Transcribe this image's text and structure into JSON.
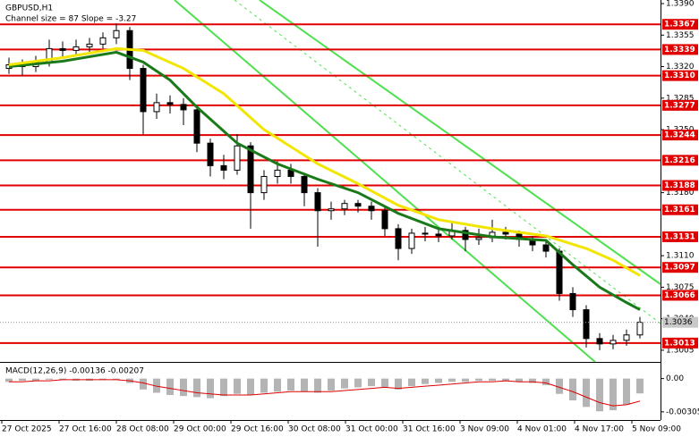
{
  "chart_data": {
    "type": "candlestick",
    "title": "GBPUSD,H1",
    "subtitle": "Channel size = 87 Slope = -3.27",
    "categories": [
      "27 Oct 2025",
      "27 Oct 16:00",
      "28 Oct 08:00",
      "29 Oct 00:00",
      "29 Oct 16:00",
      "30 Oct 08:00",
      "31 Oct 00:00",
      "31 Oct 16:00",
      "3 Nov 09:00",
      "4 Nov 01:00",
      "4 Nov 17:00",
      "5 Nov 09:00"
    ],
    "ylim": [
      1.2992,
      1.3394
    ],
    "yticks": [
      {
        "value": 1.339,
        "label": "1.3390"
      },
      1.3355,
      {
        "value": 1.332,
        "label": "1.3320"
      },
      1.3285,
      {
        "value": 1.325,
        "label": "1.3250"
      },
      {
        "value": 1.318,
        "label": "1.3180"
      },
      {
        "value": 1.311,
        "label": "1.3110"
      },
      1.3075,
      {
        "value": 1.304,
        "label": "1.3040"
      },
      1.3005
    ],
    "bull_color": "#000000",
    "bear_color": "#000000",
    "ohlc": [
      [
        1.3318,
        1.333,
        1.3312,
        1.3322
      ],
      [
        1.3322,
        1.3328,
        1.331,
        1.332
      ],
      [
        1.332,
        1.3332,
        1.3314,
        1.3325
      ],
      [
        1.3325,
        1.335,
        1.332,
        1.334
      ],
      [
        1.334,
        1.3348,
        1.333,
        1.3338
      ],
      [
        1.3338,
        1.335,
        1.3332,
        1.3342
      ],
      [
        1.3342,
        1.3352,
        1.3335,
        1.3345
      ],
      [
        1.3345,
        1.3358,
        1.334,
        1.3352
      ],
      [
        1.3352,
        1.3368,
        1.3345,
        1.336
      ],
      [
        1.336,
        1.3364,
        1.3305,
        1.3318
      ],
      [
        1.3318,
        1.3322,
        1.3245,
        1.327
      ],
      [
        1.327,
        1.329,
        1.3262,
        1.328
      ],
      [
        1.328,
        1.3288,
        1.3268,
        1.3278
      ],
      [
        1.3278,
        1.3285,
        1.3255,
        1.3272
      ],
      [
        1.3272,
        1.3276,
        1.3225,
        1.3235
      ],
      [
        1.3235,
        1.324,
        1.3198,
        1.321
      ],
      [
        1.321,
        1.3222,
        1.3195,
        1.3205
      ],
      [
        1.3205,
        1.3245,
        1.32,
        1.3232
      ],
      [
        1.3232,
        1.3236,
        1.314,
        1.318
      ],
      [
        1.318,
        1.3205,
        1.3172,
        1.3198
      ],
      [
        1.3198,
        1.3215,
        1.319,
        1.3205
      ],
      [
        1.3205,
        1.3212,
        1.319,
        1.3198
      ],
      [
        1.3198,
        1.3202,
        1.3165,
        1.318
      ],
      [
        1.318,
        1.3185,
        1.312,
        1.316
      ],
      [
        1.316,
        1.317,
        1.315,
        1.3162
      ],
      [
        1.3162,
        1.3172,
        1.3155,
        1.3168
      ],
      [
        1.3168,
        1.3172,
        1.3158,
        1.3165
      ],
      [
        1.3165,
        1.317,
        1.315,
        1.316
      ],
      [
        1.316,
        1.3164,
        1.3132,
        1.314
      ],
      [
        1.314,
        1.3145,
        1.3105,
        1.3118
      ],
      [
        1.3118,
        1.314,
        1.3112,
        1.3135
      ],
      [
        1.3135,
        1.3142,
        1.3126,
        1.3134
      ],
      [
        1.3134,
        1.314,
        1.3125,
        1.3132
      ],
      [
        1.3132,
        1.3148,
        1.3128,
        1.3138
      ],
      [
        1.3138,
        1.3142,
        1.3115,
        1.3128
      ],
      [
        1.3128,
        1.314,
        1.3122,
        1.313
      ],
      [
        1.313,
        1.315,
        1.3125,
        1.3136
      ],
      [
        1.3136,
        1.3142,
        1.3128,
        1.3134
      ],
      [
        1.3134,
        1.3138,
        1.312,
        1.3128
      ],
      [
        1.3128,
        1.3132,
        1.3115,
        1.3122
      ],
      [
        1.3122,
        1.3126,
        1.3108,
        1.3115
      ],
      [
        1.3115,
        1.3118,
        1.306,
        1.3068
      ],
      [
        1.3068,
        1.3075,
        1.3042,
        1.305
      ],
      [
        1.305,
        1.3055,
        1.3008,
        1.3018
      ],
      [
        1.3018,
        1.3024,
        1.3005,
        1.3012
      ],
      [
        1.3012,
        1.3022,
        1.3006,
        1.3016
      ],
      [
        1.3016,
        1.3028,
        1.301,
        1.3022
      ],
      [
        1.3022,
        1.3042,
        1.3018,
        1.3036
      ]
    ],
    "moving_averages": [
      {
        "color": "#1a7a1a",
        "x": [
          0,
          4,
          8,
          10,
          12,
          14,
          17,
          20,
          23,
          26,
          29,
          32,
          36,
          40,
          42,
          44,
          46,
          47
        ],
        "values": [
          1.332,
          1.3326,
          1.3336,
          1.3325,
          1.3305,
          1.3275,
          1.3235,
          1.3212,
          1.3195,
          1.318,
          1.3157,
          1.314,
          1.3131,
          1.3127,
          1.31,
          1.3075,
          1.3058,
          1.305
        ]
      },
      {
        "color": "#f2e600",
        "x": [
          0,
          4,
          8,
          10,
          13,
          16,
          19,
          23,
          26,
          29,
          32,
          36,
          40,
          43,
          45,
          47
        ],
        "values": [
          1.3322,
          1.333,
          1.334,
          1.3338,
          1.3318,
          1.329,
          1.325,
          1.3212,
          1.319,
          1.3166,
          1.315,
          1.314,
          1.3132,
          1.3118,
          1.3105,
          1.3088
        ]
      }
    ],
    "levels": [
      1.3367,
      1.3339,
      {
        "value": 1.331,
        "label": "1.3310"
      },
      1.3277,
      1.3244,
      1.3216,
      1.3188,
      1.3161,
      1.3131,
      1.3097,
      1.3066,
      1.3013
    ],
    "level_color": "#e00000",
    "last_price": 1.3036,
    "macd": {
      "label": "MACD(12,26,9) -0.00136 -0.00207",
      "ylim": [
        -0.0038,
        0.0012
      ],
      "yticks": [
        {
          "value": 0,
          "label": "0.00"
        },
        -0.00305
      ],
      "histogram_color": "#b4b4b4",
      "signal_color": "#e00000",
      "histogram": [
        -0.0003,
        -0.0002,
        -0.0002,
        -0.0001,
        -0.0001,
        -0.0002,
        -0.0002,
        -0.0001,
        -0.0001,
        -0.0004,
        -0.001,
        -0.0013,
        -0.0015,
        -0.0016,
        -0.0017,
        -0.0018,
        -0.0016,
        -0.0014,
        -0.0015,
        -0.0013,
        -0.0012,
        -0.0011,
        -0.0012,
        -0.0013,
        -0.0011,
        -0.0009,
        -0.0008,
        -0.0007,
        -0.0008,
        -0.001,
        -0.0007,
        -0.0005,
        -0.0004,
        -0.0003,
        -0.0003,
        -0.0002,
        -0.0002,
        -0.0002,
        -0.0003,
        -0.0004,
        -0.0006,
        -0.0014,
        -0.002,
        -0.0026,
        -0.003,
        -0.0029,
        -0.0024,
        -0.00136
      ],
      "signal": [
        -0.0003,
        -0.0003,
        -0.0002,
        -0.0002,
        -0.0001,
        -0.0001,
        -0.0001,
        -0.0001,
        -0.0001,
        -0.0002,
        -0.0004,
        -0.0007,
        -0.0009,
        -0.0011,
        -0.0013,
        -0.0014,
        -0.0015,
        -0.0015,
        -0.0015,
        -0.0014,
        -0.0013,
        -0.0012,
        -0.0012,
        -0.0012,
        -0.0012,
        -0.0011,
        -0.001,
        -0.0009,
        -0.0008,
        -0.0009,
        -0.0008,
        -0.0007,
        -0.0006,
        -0.0005,
        -0.0004,
        -0.0003,
        -0.0003,
        -0.0002,
        -0.0003,
        -0.0003,
        -0.0004,
        -0.0008,
        -0.0012,
        -0.0017,
        -0.0022,
        -0.0025,
        -0.0024,
        -0.00207
      ]
    }
  }
}
